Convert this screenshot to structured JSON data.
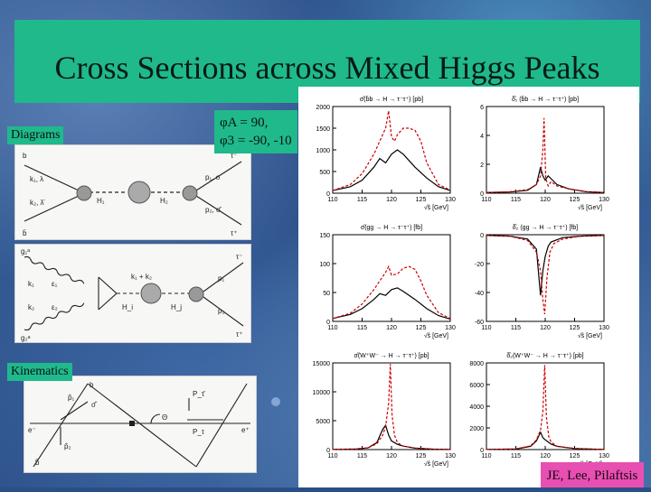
{
  "slide": {
    "title": "Cross Sections across Mixed Higgs Peaks",
    "diagrams_label": "Diagrams",
    "kinematics_label": "Kinematics",
    "phi_line1": "φA = 90,",
    "phi_line2": "φ3 = -90, -10",
    "credit": "JE, Lee, Pilaftsis"
  },
  "diagram1": {
    "labels": [
      "b",
      "b̄",
      "H₁",
      "H₂",
      "k₁, λ",
      "k₂, λ̄",
      "τ⁻",
      "τ⁺",
      "p₁, σ",
      "p₂, σ̄"
    ]
  },
  "diagram2": {
    "labels": [
      "g₁ᵃ",
      "g₂ᵃ",
      "k₁",
      "k₂",
      "k₁ + k₂",
      "H_i",
      "H_j",
      "p₁",
      "p₂",
      "τ⁻",
      "τ⁺",
      "ε₁",
      "ε₂"
    ]
  },
  "kinematics": {
    "labels": [
      "b",
      "b̄",
      "p̂₁",
      "σ̂",
      "p̂₂",
      "Θ",
      "P_τ",
      "P_τ̄",
      "e⁺",
      "e⁻"
    ]
  },
  "plots": {
    "x_axis_label": "√ŝ [GeV]",
    "x_ticks": [
      "110",
      "115",
      "120",
      "125",
      "130"
    ],
    "rows": [
      {
        "left_title": "σ̂(b̄b → H → τ⁻τ⁺) [pb]",
        "left_yticks": [
          "0",
          "500",
          "1000",
          "1500",
          "2000"
        ],
        "right_title": "δ̂₁ (b̄b → H → τ⁻τ⁺) [pb]",
        "right_yticks": [
          "0",
          "2",
          "4",
          "6"
        ]
      },
      {
        "left_title": "σ̂(gg → H → τ⁻τ⁺) [fb]",
        "left_yticks": [
          "0",
          "50",
          "100",
          "150"
        ],
        "right_title": "δ̂₂ (gg → H → τ⁻τ⁺) [fb]",
        "right_yticks": [
          "-60",
          "-40",
          "-20",
          "0"
        ]
      },
      {
        "left_title": "σ̂(W⁺W⁻ → H → τ⁻τ⁺) [pb]",
        "left_yticks": [
          "0",
          "5000",
          "10000",
          "15000"
        ],
        "right_title": "δ̂₂(W⁺W⁻ → H → τ⁻τ⁺) [pb]",
        "right_yticks": [
          "0",
          "2000",
          "4000",
          "6000",
          "8000"
        ]
      }
    ]
  },
  "chart_data": {
    "type": "line",
    "title": "Cross Sections across Mixed Higgs Peaks",
    "xlabel": "√ŝ [GeV]",
    "xlim": [
      110,
      130
    ],
    "series": [
      {
        "panel": "σ̂(b̄b → H → τ⁻τ⁺) [pb]",
        "ylim": [
          0,
          2000
        ],
        "style": "solid",
        "color": "#000000",
        "x": [
          110,
          113,
          115,
          117,
          118,
          119,
          120,
          121,
          122,
          124,
          126,
          128,
          130
        ],
        "y": [
          60,
          150,
          300,
          600,
          800,
          700,
          900,
          1000,
          900,
          600,
          350,
          150,
          60
        ]
      },
      {
        "panel": "σ̂(b̄b → H → τ⁻τ⁺) [pb]",
        "ylim": [
          0,
          2000
        ],
        "style": "dashed",
        "color": "#cc0000",
        "x": [
          110,
          113,
          115,
          117,
          118,
          119,
          119.5,
          120,
          120.5,
          121,
          122,
          123,
          124,
          125,
          126,
          128,
          130
        ],
        "y": [
          60,
          200,
          450,
          900,
          1200,
          1500,
          1900,
          1300,
          1200,
          1350,
          1500,
          1500,
          1450,
          1200,
          700,
          200,
          70
        ]
      },
      {
        "panel": "δ̂₁ (b̄b → H → τ⁻τ⁺) [pb]",
        "ylim": [
          0,
          6
        ],
        "style": "solid",
        "color": "#000000",
        "x": [
          110,
          114,
          117,
          118.5,
          119.2,
          119.6,
          120,
          120.5,
          121,
          122,
          124,
          127,
          130
        ],
        "y": [
          0.05,
          0.08,
          0.2,
          0.6,
          1.8,
          1.2,
          0.9,
          1.2,
          1.0,
          0.6,
          0.3,
          0.1,
          0.05
        ]
      },
      {
        "panel": "δ̂₁ (b̄b → H → τ⁻τ⁺) [pb]",
        "ylim": [
          0,
          6
        ],
        "style": "dashed",
        "color": "#cc0000",
        "x": [
          110,
          114,
          117,
          118.5,
          119.2,
          119.6,
          119.8,
          120.1,
          120.5,
          121,
          122,
          124,
          127,
          130
        ],
        "y": [
          0.05,
          0.1,
          0.25,
          0.6,
          1.2,
          3.0,
          5.2,
          1.0,
          0.5,
          0.8,
          0.5,
          0.3,
          0.1,
          0.05
        ]
      },
      {
        "panel": "σ̂(gg → H → τ⁻τ⁺) [fb]",
        "ylim": [
          0,
          150
        ],
        "style": "solid",
        "color": "#000000",
        "x": [
          110,
          113,
          115,
          117,
          118,
          119,
          120,
          121,
          122,
          124,
          126,
          128,
          130
        ],
        "y": [
          5,
          12,
          22,
          38,
          48,
          45,
          55,
          58,
          52,
          38,
          22,
          10,
          4
        ]
      },
      {
        "panel": "σ̂(gg → H → τ⁻τ⁺) [fb]",
        "ylim": [
          0,
          150
        ],
        "style": "dashed",
        "color": "#cc0000",
        "x": [
          110,
          113,
          115,
          117,
          118,
          119,
          119.5,
          120,
          121,
          122,
          123,
          124,
          125,
          126,
          128,
          130
        ],
        "y": [
          5,
          14,
          30,
          55,
          70,
          85,
          95,
          80,
          82,
          92,
          95,
          90,
          70,
          45,
          15,
          5
        ]
      },
      {
        "panel": "δ̂₂ (gg → H → τ⁻τ⁺) [fb]",
        "ylim": [
          -60,
          0
        ],
        "style": "solid",
        "color": "#000000",
        "x": [
          110,
          114,
          117,
          118.5,
          119.2,
          119.6,
          120,
          120.5,
          121,
          123,
          126,
          130
        ],
        "y": [
          -0.5,
          -1,
          -3,
          -10,
          -42,
          -25,
          -15,
          -8,
          -5,
          -2,
          -1,
          -0.5
        ]
      },
      {
        "panel": "δ̂₂ (gg → H → τ⁻τ⁺) [fb]",
        "ylim": [
          -60,
          0
        ],
        "style": "dashed",
        "color": "#cc0000",
        "x": [
          110,
          114,
          117,
          118.5,
          119.2,
          119.6,
          119.9,
          120.3,
          120.8,
          121.5,
          123,
          126,
          130
        ],
        "y": [
          -0.5,
          -1,
          -4,
          -12,
          -25,
          -45,
          -55,
          -30,
          -12,
          -6,
          -3,
          -1,
          -0.5
        ]
      },
      {
        "panel": "σ̂(W⁺W⁻ → H → τ⁻τ⁺) [pb]",
        "ylim": [
          0,
          15000
        ],
        "style": "solid",
        "color": "#000000",
        "x": [
          110,
          114,
          116,
          117.5,
          118.5,
          119,
          119.5,
          120,
          121,
          122,
          124,
          127,
          130
        ],
        "y": [
          30,
          100,
          300,
          1200,
          3500,
          4200,
          2500,
          1500,
          900,
          600,
          250,
          80,
          30
        ]
      },
      {
        "panel": "σ̂(W⁺W⁻ → H → τ⁻τ⁺) [pb]",
        "ylim": [
          0,
          15000
        ],
        "style": "dashed",
        "color": "#cc0000",
        "x": [
          110,
          114,
          116,
          117.5,
          118.5,
          119,
          119.5,
          119.8,
          120.1,
          120.5,
          121,
          122,
          124,
          127,
          130
        ],
        "y": [
          30,
          100,
          300,
          1000,
          2500,
          4000,
          8000,
          14800,
          6000,
          2500,
          1200,
          600,
          250,
          80,
          30
        ]
      },
      {
        "panel": "δ̂₂(W⁺W⁻ → H → τ⁻τ⁺) [pb]",
        "ylim": [
          0,
          8000
        ],
        "style": "solid",
        "color": "#000000",
        "x": [
          110,
          115,
          117.5,
          118.5,
          119.2,
          119.6,
          120,
          120.5,
          121,
          122,
          125,
          130
        ],
        "y": [
          10,
          50,
          300,
          800,
          1600,
          1100,
          900,
          700,
          500,
          300,
          100,
          10
        ]
      },
      {
        "panel": "δ̂₂(W⁺W⁻ → H → τ⁻τ⁺) [pb]",
        "ylim": [
          0,
          8000
        ],
        "style": "dashed",
        "color": "#cc0000",
        "x": [
          110,
          115,
          117.5,
          118.5,
          119.2,
          119.6,
          119.9,
          120.2,
          120.6,
          121,
          122,
          125,
          130
        ],
        "y": [
          10,
          60,
          350,
          900,
          1800,
          3500,
          7800,
          3000,
          1200,
          700,
          300,
          100,
          10
        ]
      }
    ]
  }
}
